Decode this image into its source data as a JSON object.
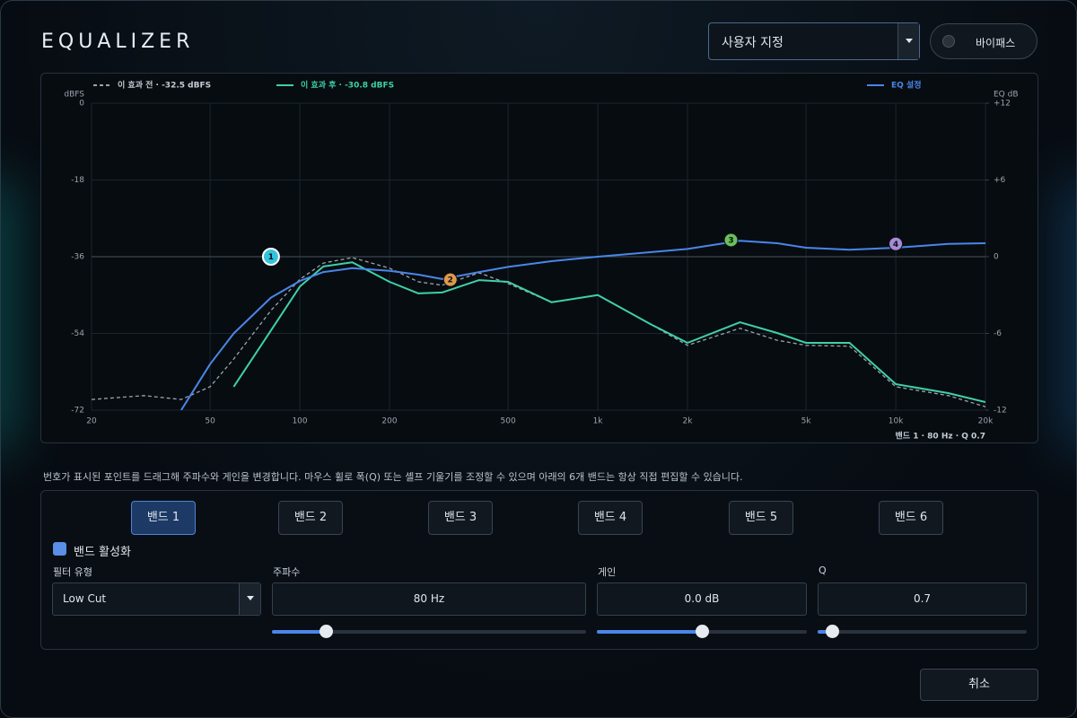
{
  "header": {
    "title": "EQUALIZER",
    "preset": "사용자 지정",
    "bypass": "바이패스"
  },
  "chart_data": {
    "type": "line",
    "y_label": "dBFS",
    "y2_label": "EQ dB",
    "x_log": true,
    "xlim": [
      20,
      20000
    ],
    "xticks": [
      20,
      50,
      100,
      200,
      500,
      {
        "value": 1000,
        "label": "1k"
      },
      {
        "value": 2000,
        "label": "2k"
      },
      {
        "value": 5000,
        "label": "5k"
      },
      {
        "value": 10000,
        "label": "10k"
      },
      {
        "value": 20000,
        "label": "20k"
      }
    ],
    "ylim": [
      -72,
      0
    ],
    "yticks": [
      0,
      -18,
      -36,
      -54,
      -72
    ],
    "y2lim": [
      -12,
      12
    ],
    "y2ticks": [
      {
        "value": 12,
        "label": "+12"
      },
      {
        "value": 6,
        "label": "+6"
      },
      0,
      -6,
      -12
    ],
    "grid": true,
    "x": [
      20,
      30,
      40,
      50,
      60,
      80,
      100,
      120,
      150,
      200,
      250,
      300,
      400,
      500,
      700,
      1000,
      1500,
      2000,
      3000,
      4000,
      5000,
      7000,
      10000,
      15000,
      20000
    ],
    "series": [
      {
        "name": "이 효과 전 · -32.5 dBFS",
        "color": "#9aa3ab",
        "dash": true,
        "values": [
          -69.5,
          -68.6,
          -69.5,
          -66.5,
          -60,
          -48.6,
          -41.3,
          -37.5,
          -36.2,
          -38.7,
          -41.9,
          -42.7,
          -39.8,
          -42.3,
          -46.7,
          -45,
          -51.8,
          -56.8,
          -52.8,
          -55.6,
          -56.8,
          -57,
          -66.5,
          -68.6,
          -71.2
        ]
      },
      {
        "name": "이 효과 후 · -30.8 dBFS",
        "color": "#3fd0a8",
        "values": [
          null,
          null,
          null,
          null,
          -66.5,
          -53.3,
          -43,
          -38.3,
          -37.3,
          -41.9,
          -44.6,
          -44.4,
          -41.5,
          -41.9,
          -46.7,
          -45,
          -51.8,
          -56.2,
          -51.4,
          -53.9,
          -56.2,
          -56.2,
          -65.9,
          -68,
          -70.1
        ]
      },
      {
        "name": "EQ 설정",
        "color": "#4a86e8",
        "axis": "y2",
        "values": [
          null,
          null,
          -12,
          -8.4,
          -6,
          -3.2,
          -1.9,
          -1.2,
          -0.9,
          -1.1,
          -1.4,
          -1.75,
          -1.2,
          -0.8,
          -0.35,
          0,
          0.35,
          0.6,
          1.25,
          1.05,
          0.7,
          0.55,
          0.7,
          1,
          1.05
        ]
      }
    ],
    "markers": [
      {
        "label": "1",
        "freq": 80,
        "gain": 0,
        "color": "#35c3dc"
      },
      {
        "label": "2",
        "freq": 320,
        "gain": -1.8,
        "color": "#e09a4a"
      },
      {
        "label": "3",
        "freq": 2800,
        "gain": 1.3,
        "color": "#6cbf5a"
      },
      {
        "label": "4",
        "freq": 10000,
        "gain": 1,
        "color": "#a88ad8"
      }
    ],
    "status": "밴드 1 · 80 Hz · Q 0.7"
  },
  "hint": "번호가 표시된 포인트를 드래그해 주파수와 게인을 변경합니다. 마우스 휠로 폭(Q) 또는 셸프 기울기를 조정할 수 있으며 아래의 6개 밴드는 항상 직접 편집할 수 있습니다.",
  "tabs": [
    "밴드 1",
    "밴드 2",
    "밴드 3",
    "밴드 4",
    "밴드 5",
    "밴드 6"
  ],
  "enable": "밴드 활성화",
  "fields": {
    "filter": {
      "label": "필터 유형",
      "value": "Low Cut"
    },
    "freq": {
      "label": "주파수",
      "value": "80 Hz"
    },
    "gain": {
      "label": "게인",
      "value": "0.0 dB"
    },
    "q": {
      "label": "Q",
      "value": "0.7"
    }
  },
  "cancel": "취소"
}
